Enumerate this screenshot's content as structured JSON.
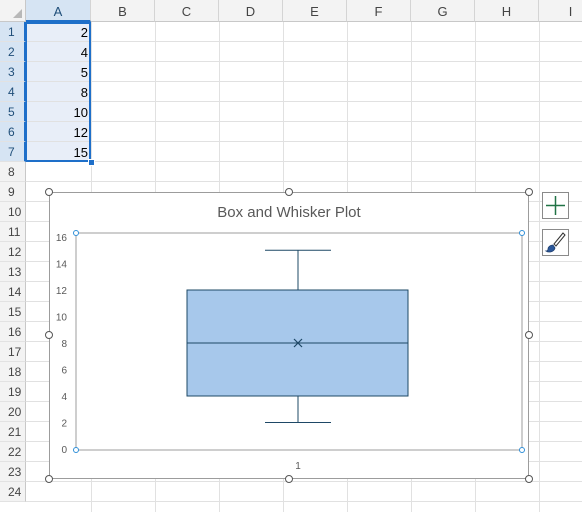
{
  "columns": [
    "A",
    "B",
    "C",
    "D",
    "E",
    "F",
    "G",
    "H",
    "I"
  ],
  "rows": [
    "1",
    "2",
    "3",
    "4",
    "5",
    "6",
    "7",
    "8",
    "9",
    "10",
    "11",
    "12",
    "13",
    "14",
    "15",
    "16",
    "17",
    "18",
    "19",
    "20",
    "21",
    "22",
    "23",
    "24"
  ],
  "selection": {
    "column": "A",
    "rows": [
      "1",
      "2",
      "3",
      "4",
      "5",
      "6",
      "7"
    ]
  },
  "cells": {
    "A1": "2",
    "A2": "4",
    "A3": "5",
    "A4": "8",
    "A5": "10",
    "A6": "12",
    "A7": "15"
  },
  "chart_side_buttons": {
    "elements": {
      "icon": "plus-icon",
      "color": "#217346"
    },
    "styles": {
      "icon": "paintbrush-icon",
      "color": "#2b579a"
    }
  },
  "chart_data": {
    "type": "box",
    "title": "Box and Whisker Plot",
    "categories": [
      "1"
    ],
    "ylim": [
      0,
      16
    ],
    "yticks": [
      "0",
      "2",
      "4",
      "6",
      "8",
      "10",
      "12",
      "14",
      "16"
    ],
    "grid": false,
    "series": [
      {
        "values": [
          2,
          4,
          5,
          8,
          10,
          12,
          15
        ],
        "min": 2,
        "q1": 4,
        "median": 8,
        "q3": 12,
        "max": 15,
        "mean": 8,
        "box_color": "#a7c8eb",
        "line_color": "#1e4866"
      }
    ]
  }
}
